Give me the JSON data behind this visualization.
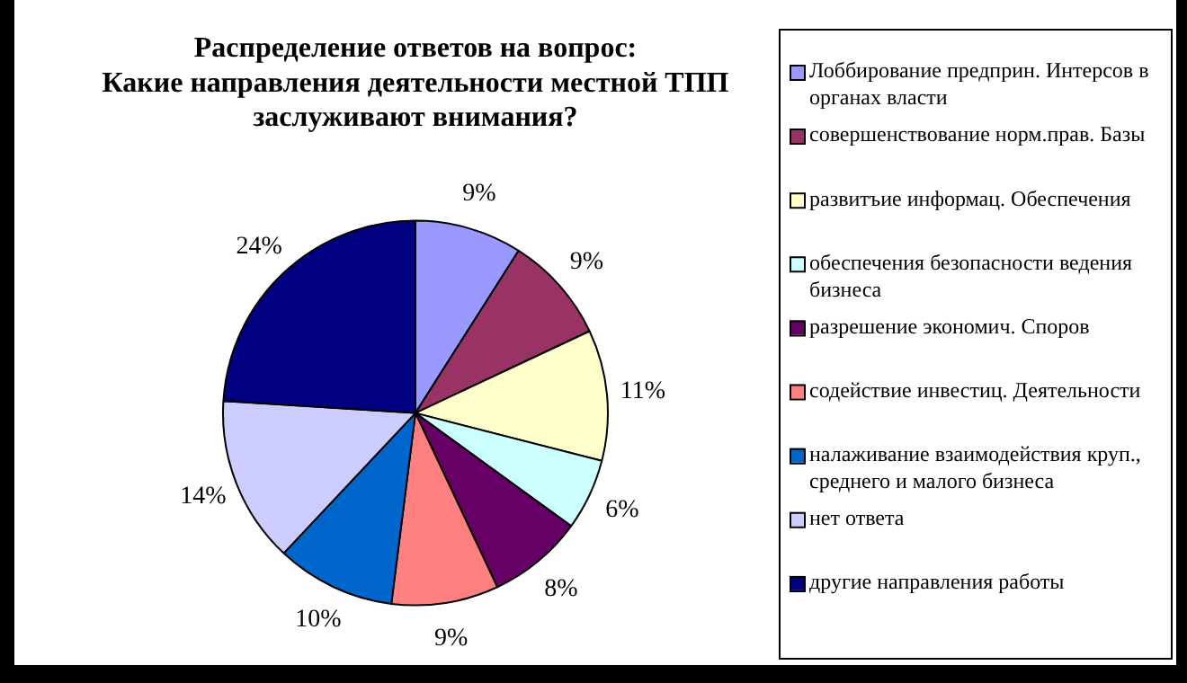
{
  "chart_data": {
    "type": "pie",
    "title": "Распределение ответов на вопрос:\nКакие направления деятельности местной ТПП\nзаслуживают внимания?",
    "categories": [
      "Лоббирование предприн. Интерсов в органах власти",
      "совершенствование норм.прав. Базы",
      "развитъие информац. Обеспечения",
      "обеспечения безопасности ведения бизнеса",
      "разрешение экономич. Споров",
      "содействие инвестиц. Деятельности",
      "налаживание взаимодействия круп., среднего и малого бизнеса",
      "нет ответа",
      "другие направления работы"
    ],
    "values": [
      9,
      9,
      11,
      6,
      8,
      9,
      10,
      14,
      24
    ],
    "value_labels": [
      "9%",
      "9%",
      "11%",
      "6%",
      "8%",
      "9%",
      "10%",
      "14%",
      "24%"
    ],
    "colors": [
      "#9999ff",
      "#993366",
      "#ffffcc",
      "#ccffff",
      "#660066",
      "#ff8080",
      "#0066cc",
      "#ccccff",
      "#000080"
    ],
    "legend": "right"
  }
}
